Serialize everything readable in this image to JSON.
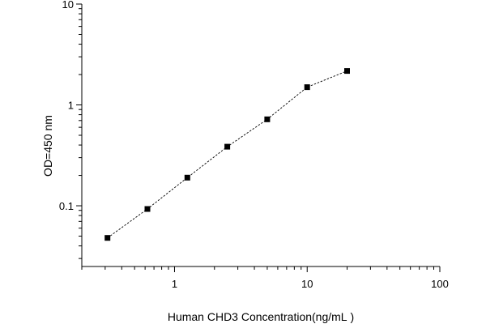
{
  "chart_data": {
    "type": "line",
    "title": "",
    "xlabel": "Human CHD3 Concentration(ng/mL )",
    "ylabel": "OD=450 nm",
    "x_scale": "log",
    "y_scale": "log",
    "xlim": [
      0.2,
      100
    ],
    "ylim": [
      0.025,
      10
    ],
    "x_ticks": [
      1,
      10,
      100
    ],
    "x_tick_labels": [
      "1",
      "10",
      "100"
    ],
    "y_ticks": [
      0.1,
      1,
      10
    ],
    "y_tick_labels": [
      "0.1",
      "1",
      "10"
    ],
    "grid": false,
    "legend": "none",
    "series": [
      {
        "x": [
          0.3125,
          0.625,
          1.25,
          2.5,
          5,
          10,
          20
        ],
        "y": [
          0.048,
          0.093,
          0.19,
          0.385,
          0.72,
          1.5,
          2.17
        ]
      }
    ],
    "colors": {
      "marker": "#000000",
      "line": "#000000",
      "axis": "#000000"
    }
  }
}
